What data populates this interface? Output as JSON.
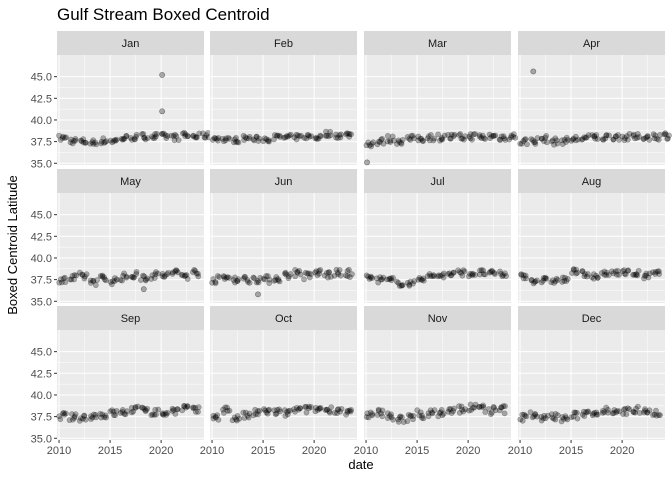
{
  "chart_data": {
    "type": "scatter",
    "title": "Gulf Stream Boxed Centroid",
    "xlabel": "date",
    "ylabel": "Boxed Centroid Latitude",
    "xlim": [
      2009.8,
      2024.2
    ],
    "ylim": [
      34.8,
      47.5
    ],
    "x_ticks": [
      2010,
      2015,
      2020
    ],
    "y_ticks": [
      35.0,
      37.5,
      40.0,
      42.5,
      45.0
    ],
    "x_tick_labels": [
      "2010",
      "2015",
      "2020"
    ],
    "y_tick_labels": [
      "35.0",
      "37.5",
      "40.0",
      "42.5",
      "45.0"
    ],
    "facet_layout": {
      "rows": 3,
      "cols": 4
    },
    "grid": true,
    "point_color": "#000000",
    "point_alpha": 0.3,
    "panel_bg": "#ebebeb",
    "strip_bg": "#d9d9d9",
    "panels": [
      {
        "label": "Jan",
        "years": [
          2010,
          2011,
          2012,
          2013,
          2014,
          2015,
          2016,
          2017,
          2018,
          2019,
          2020,
          2021,
          2022,
          2023,
          2024
        ],
        "means": [
          37.9,
          37.6,
          37.5,
          37.4,
          37.6,
          37.6,
          37.9,
          38.0,
          38.1,
          38.1,
          38.1,
          38.0,
          38.2,
          38.1,
          38.2
        ],
        "spread": 0.35,
        "per_year": 6,
        "outliers": [
          [
            2020.1,
            45.2
          ],
          [
            2020.1,
            41.0
          ]
        ]
      },
      {
        "label": "Feb",
        "years": [
          2010,
          2011,
          2012,
          2013,
          2014,
          2015,
          2016,
          2017,
          2018,
          2019,
          2020,
          2021,
          2022,
          2023
        ],
        "means": [
          37.9,
          37.7,
          37.7,
          37.9,
          37.8,
          37.8,
          38.0,
          38.0,
          38.0,
          38.1,
          38.0,
          38.4,
          38.2,
          38.3
        ],
        "spread": 0.3,
        "per_year": 6,
        "outliers": []
      },
      {
        "label": "Mar",
        "years": [
          2010,
          2011,
          2012,
          2013,
          2014,
          2015,
          2016,
          2017,
          2018,
          2019,
          2020,
          2021,
          2022,
          2023,
          2024
        ],
        "means": [
          37.3,
          37.5,
          37.8,
          37.6,
          37.8,
          37.9,
          38.0,
          38.0,
          38.0,
          38.0,
          38.1,
          38.0,
          38.1,
          38.0,
          38.1
        ],
        "spread": 0.4,
        "per_year": 6,
        "outliers": [
          [
            2010.1,
            35.1
          ]
        ]
      },
      {
        "label": "Apr",
        "years": [
          2010,
          2011,
          2012,
          2013,
          2014,
          2015,
          2016,
          2017,
          2018,
          2019,
          2020,
          2021,
          2022,
          2023,
          2024
        ],
        "means": [
          37.5,
          37.6,
          37.8,
          37.5,
          37.6,
          37.8,
          37.9,
          38.0,
          38.0,
          38.1,
          38.0,
          38.0,
          38.1,
          38.1,
          38.2
        ],
        "spread": 0.4,
        "per_year": 6,
        "outliers": [
          [
            2011.3,
            45.6
          ]
        ]
      },
      {
        "label": "May",
        "years": [
          2010,
          2011,
          2012,
          2013,
          2014,
          2015,
          2016,
          2017,
          2018,
          2019,
          2020,
          2021,
          2022,
          2023
        ],
        "means": [
          37.4,
          37.6,
          37.9,
          37.3,
          37.6,
          37.4,
          37.8,
          38.0,
          37.8,
          38.0,
          38.0,
          38.3,
          38.0,
          38.3
        ],
        "spread": 0.45,
        "per_year": 6,
        "outliers": [
          [
            2018.3,
            36.4
          ]
        ]
      },
      {
        "label": "Jun",
        "years": [
          2010,
          2011,
          2012,
          2013,
          2014,
          2015,
          2016,
          2017,
          2018,
          2019,
          2020,
          2021,
          2022,
          2023
        ],
        "means": [
          37.5,
          37.7,
          37.6,
          37.5,
          37.6,
          37.5,
          37.7,
          38.0,
          38.3,
          37.9,
          38.3,
          38.1,
          38.2,
          38.2
        ],
        "spread": 0.45,
        "per_year": 6,
        "outliers": [
          [
            2014.5,
            35.8
          ]
        ]
      },
      {
        "label": "Jul",
        "years": [
          2010,
          2011,
          2012,
          2013,
          2014,
          2015,
          2016,
          2017,
          2018,
          2019,
          2020,
          2021,
          2022,
          2023
        ],
        "means": [
          37.7,
          37.5,
          37.4,
          37.1,
          37.0,
          37.7,
          37.9,
          38.0,
          38.1,
          38.3,
          38.2,
          38.3,
          38.2,
          38.1
        ],
        "spread": 0.35,
        "per_year": 6,
        "outliers": []
      },
      {
        "label": "Aug",
        "years": [
          2010,
          2011,
          2012,
          2013,
          2014,
          2015,
          2016,
          2017,
          2018,
          2019,
          2020,
          2021,
          2022,
          2023
        ],
        "means": [
          37.9,
          37.4,
          37.4,
          37.4,
          37.5,
          38.4,
          38.2,
          37.8,
          38.1,
          38.4,
          38.3,
          38.2,
          37.9,
          38.2
        ],
        "spread": 0.35,
        "per_year": 6,
        "outliers": []
      },
      {
        "label": "Sep",
        "years": [
          2010,
          2011,
          2012,
          2013,
          2014,
          2015,
          2016,
          2017,
          2018,
          2019,
          2020,
          2021,
          2022,
          2023
        ],
        "means": [
          37.6,
          37.4,
          37.4,
          37.6,
          37.7,
          37.9,
          38.0,
          38.3,
          38.4,
          38.0,
          37.9,
          38.2,
          38.5,
          38.2
        ],
        "spread": 0.4,
        "per_year": 6,
        "outliers": []
      },
      {
        "label": "Oct",
        "years": [
          2010,
          2011,
          2012,
          2013,
          2014,
          2015,
          2016,
          2017,
          2018,
          2019,
          2020,
          2021,
          2022,
          2023
        ],
        "means": [
          37.5,
          38.3,
          37.3,
          37.6,
          37.9,
          38.1,
          38.0,
          37.9,
          38.3,
          38.3,
          38.4,
          38.3,
          38.3,
          38.0
        ],
        "spread": 0.4,
        "per_year": 6,
        "outliers": []
      },
      {
        "label": "Nov",
        "years": [
          2010,
          2011,
          2012,
          2013,
          2014,
          2015,
          2016,
          2017,
          2018,
          2019,
          2020,
          2021,
          2022,
          2023
        ],
        "means": [
          37.5,
          37.9,
          37.5,
          37.3,
          37.3,
          37.8,
          37.8,
          38.0,
          38.1,
          38.4,
          38.5,
          38.5,
          38.2,
          38.3
        ],
        "spread": 0.5,
        "per_year": 6,
        "outliers": []
      },
      {
        "label": "Dec",
        "years": [
          2010,
          2011,
          2012,
          2013,
          2014,
          2015,
          2016,
          2017,
          2018,
          2019,
          2020,
          2021,
          2022,
          2023
        ],
        "means": [
          37.4,
          37.8,
          37.3,
          37.5,
          37.3,
          37.6,
          37.9,
          38.0,
          38.3,
          38.2,
          38.1,
          38.3,
          38.3,
          37.9
        ],
        "spread": 0.4,
        "per_year": 6,
        "outliers": []
      }
    ]
  }
}
